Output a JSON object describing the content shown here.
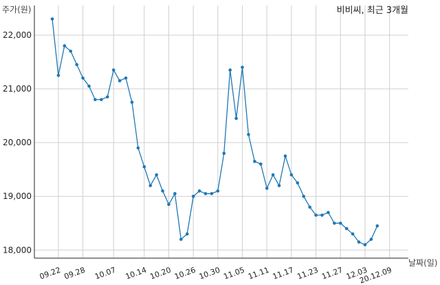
{
  "chart_data": {
    "type": "line",
    "title": "비비씨, 최근 3개월",
    "ylabel": "주가(원)",
    "xlabel": "날짜(일)",
    "ylim": [
      17850,
      22550
    ],
    "yticks": [
      18000,
      19000,
      20000,
      21000,
      22000
    ],
    "ytick_labels": [
      "18,000",
      "19,000",
      "20,000",
      "21,000",
      "22,000"
    ],
    "xtick_labels": [
      "09.22",
      "09.28",
      "10.07",
      "10.14",
      "10.20",
      "10.26",
      "10.30",
      "11.05",
      "11.11",
      "11.17",
      "11.23",
      "11.27",
      "12.03",
      "20.12.09"
    ],
    "xtick_index": [
      1,
      5,
      10,
      15,
      19,
      23,
      27,
      31,
      35,
      39,
      43,
      47,
      51,
      55
    ],
    "grid": true,
    "line_color": "#1f77b4",
    "series": [
      {
        "name": "",
        "values": [
          22300,
          21250,
          21800,
          21700,
          21450,
          21200,
          21050,
          20800,
          20800,
          20850,
          21350,
          21150,
          21200,
          20750,
          19900,
          19550,
          19200,
          19400,
          19100,
          18850,
          19050,
          18200,
          18300,
          19000,
          19100,
          19050,
          19050,
          19100,
          19800,
          21350,
          20450,
          21400,
          20150,
          19650,
          19600,
          19150,
          19400,
          19200,
          19750,
          19400,
          19250,
          19000,
          18800,
          18650,
          18650,
          18700,
          18500,
          18500,
          18400,
          18300,
          18150,
          18100,
          18200,
          18450
        ]
      }
    ]
  }
}
